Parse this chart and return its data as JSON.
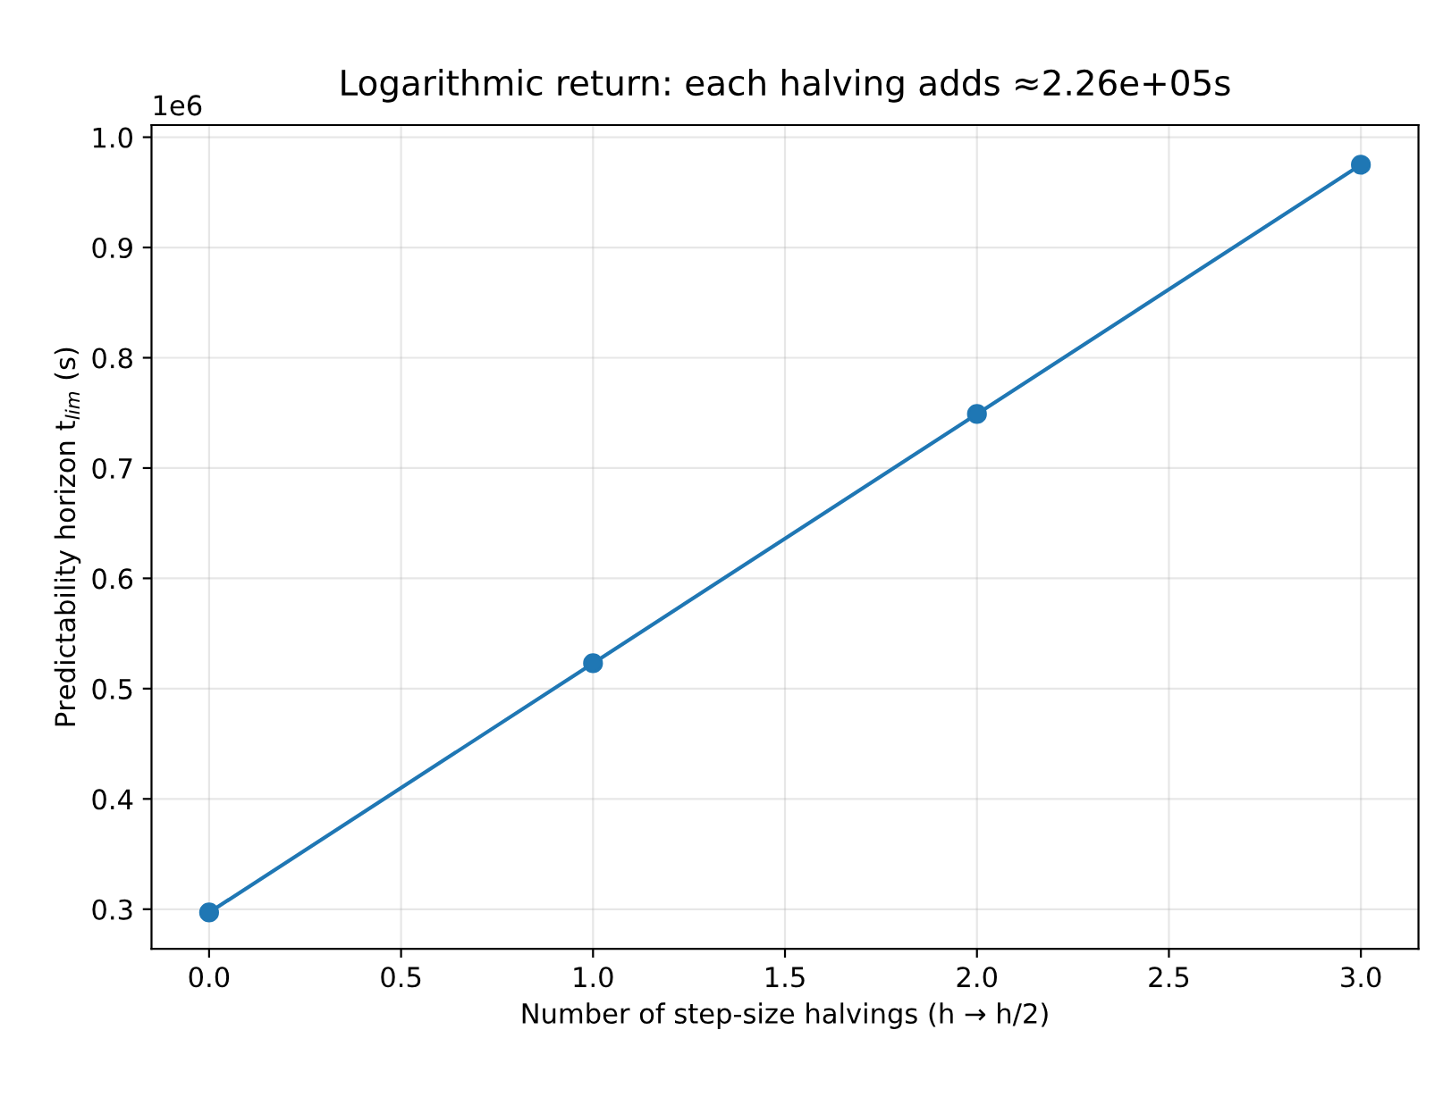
{
  "chart_data": {
    "type": "line",
    "title": "Logarithmic return: each halving adds ≈2.26e+05s",
    "xlabel": "Number of step-size halvings (h → h/2)",
    "ylabel": "Predictability horizon t$_{lim}$ (s)",
    "x": [
      0,
      1,
      2,
      3
    ],
    "series": [
      {
        "color": "#1f77b4",
        "values": [
          0.297,
          0.523,
          0.749,
          0.975
        ]
      }
    ],
    "xlim": [
      -0.15,
      3.15
    ],
    "xticks": [
      {
        "value": 0,
        "label": "0.0"
      },
      0.5,
      {
        "value": 1,
        "label": "1.0"
      },
      1.5,
      {
        "value": 2,
        "label": "2.0"
      },
      2.5,
      {
        "value": 3,
        "label": "3.0"
      }
    ],
    "ylim": [
      0.264,
      1.011
    ],
    "yticks": [
      0.3,
      0.4,
      0.5,
      0.6,
      0.7,
      0.8,
      0.9,
      {
        "value": 1,
        "label": "1.0"
      }
    ],
    "annotations": [
      "1e6"
    ],
    "grid": true,
    "marker": "circle",
    "line_style": "solid"
  }
}
